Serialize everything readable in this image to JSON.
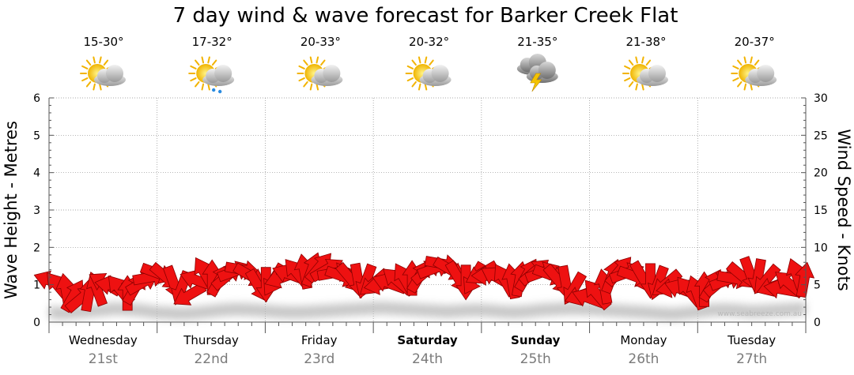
{
  "chart_data": {
    "type": "line",
    "title": "7 day wind & wave forecast for Barker Creek Flat",
    "ylabel_left": "Wave Height - Metres",
    "ylabel_right": "Wind Speed - Knots",
    "ylim_left": [
      0,
      6
    ],
    "ylim_right": [
      0,
      30
    ],
    "yticks_left": [
      "0",
      "1",
      "2",
      "3",
      "4",
      "5",
      "6"
    ],
    "yticks_right": [
      "0",
      "5",
      "10",
      "15",
      "20",
      "25",
      "30"
    ],
    "grid": true,
    "days": [
      {
        "name": "Wednesday",
        "date": "21st",
        "temp": "15-30°",
        "icon": "partly-cloudy-icon",
        "bold": false
      },
      {
        "name": "Thursday",
        "date": "22nd",
        "temp": "17-32°",
        "icon": "showers-icon",
        "bold": false
      },
      {
        "name": "Friday",
        "date": "23rd",
        "temp": "20-33°",
        "icon": "partly-cloudy-icon",
        "bold": false
      },
      {
        "name": "Saturday",
        "date": "24th",
        "temp": "20-32°",
        "icon": "partly-cloudy-icon",
        "bold": true
      },
      {
        "name": "Sunday",
        "date": "25th",
        "temp": "21-35°",
        "icon": "storm-icon",
        "bold": true
      },
      {
        "name": "Monday",
        "date": "26th",
        "temp": "21-38°",
        "icon": "partly-cloudy-icon",
        "bold": false
      },
      {
        "name": "Tuesday",
        "date": "27th",
        "temp": "20-37°",
        "icon": "partly-cloudy-icon",
        "bold": false
      }
    ],
    "wave_series": {
      "name": "Wave height (m)",
      "values": [
        0.6,
        0.57,
        0.6,
        0.63,
        0.66,
        0.7,
        0.68,
        0.65,
        0.6,
        0.58,
        0.56,
        0.58,
        0.62,
        0.66,
        0.68,
        0.67,
        0.65,
        0.62,
        0.6,
        0.6,
        0.62,
        0.64,
        0.66,
        0.68,
        0.7,
        0.72,
        0.7,
        0.68,
        0.66,
        0.64,
        0.62,
        0.64,
        0.66,
        0.65,
        0.62,
        0.6,
        0.62,
        0.66,
        0.68,
        0.7,
        0.7,
        0.68,
        0.66,
        0.64,
        0.62,
        0.6,
        0.57,
        0.55,
        0.58,
        0.62,
        0.66,
        0.67,
        0.65,
        0.62,
        0.64,
        0.66,
        0.68,
        0.7
      ]
    },
    "wind_series": {
      "name": "Wind speed (knots)",
      "values": [
        5.5,
        4.8,
        4.2,
        3.6,
        3.2,
        3.8,
        4.5,
        5.2,
        4.9,
        4.4,
        3.9,
        4.6,
        5.3,
        6.0,
        6.5,
        6.0,
        5.2,
        4.5,
        3.6,
        5.6,
        6.6,
        6.0,
        5.7,
        6.2,
        6.8,
        7.0,
        6.2,
        4.8,
        5.0,
        5.6,
        5.9,
        6.4,
        6.6,
        6.8,
        7.1,
        7.4,
        7.1,
        6.6,
        6.1,
        5.8,
        5.5,
        5.4,
        5.2,
        5.0,
        5.2,
        5.6,
        5.8,
        5.9,
        6.2,
        6.9,
        7.2,
        7.8,
        7.0,
        5.9,
        5.3,
        5.8,
        6.5,
        6.2,
        6.0,
        5.7,
        5.5,
        5.8,
        6.4,
        6.8,
        6.7,
        6.3,
        5.6,
        5.2,
        4.4,
        3.6,
        3.2,
        3.8,
        4.8,
        6.2,
        6.9,
        6.6,
        6.1,
        5.9,
        5.5,
        5.2,
        5.1,
        4.6,
        4.4,
        4.2,
        4.0,
        4.4,
        5.0,
        5.3,
        5.6,
        5.8,
        6.1,
        6.4,
        6.1,
        5.6,
        4.8,
        4.4,
        5.2,
        6.3,
        5.7
      ]
    },
    "wind_directions_deg": [
      200,
      230,
      260,
      300,
      320,
      280,
      250,
      210,
      190,
      230,
      270,
      300,
      330,
      350,
      20,
      40,
      70,
      110,
      150,
      200,
      240,
      270,
      300,
      320,
      340,
      10,
      30,
      60,
      90,
      120,
      160,
      200,
      230,
      260,
      290,
      310,
      330,
      350,
      20,
      50,
      80,
      110,
      140,
      170,
      200,
      220,
      240,
      270,
      300,
      320,
      340,
      10,
      30,
      60,
      90,
      120,
      150,
      180,
      210,
      240,
      260,
      280,
      300,
      320,
      340,
      20,
      50,
      80,
      120,
      160,
      200,
      230,
      260,
      290,
      310,
      340,
      20,
      60,
      90,
      110,
      140,
      170,
      200,
      230,
      250,
      270,
      300,
      320,
      340,
      10,
      40,
      70,
      100,
      130,
      160,
      190,
      220,
      250,
      280
    ]
  },
  "watermark": "www.seabreeze.com.au",
  "colors": {
    "arrow_fill": "#ee1111",
    "arrow_stroke": "#8a0000",
    "wave_shadow": "#bdbdbd",
    "grid": "#8c8c8c"
  }
}
